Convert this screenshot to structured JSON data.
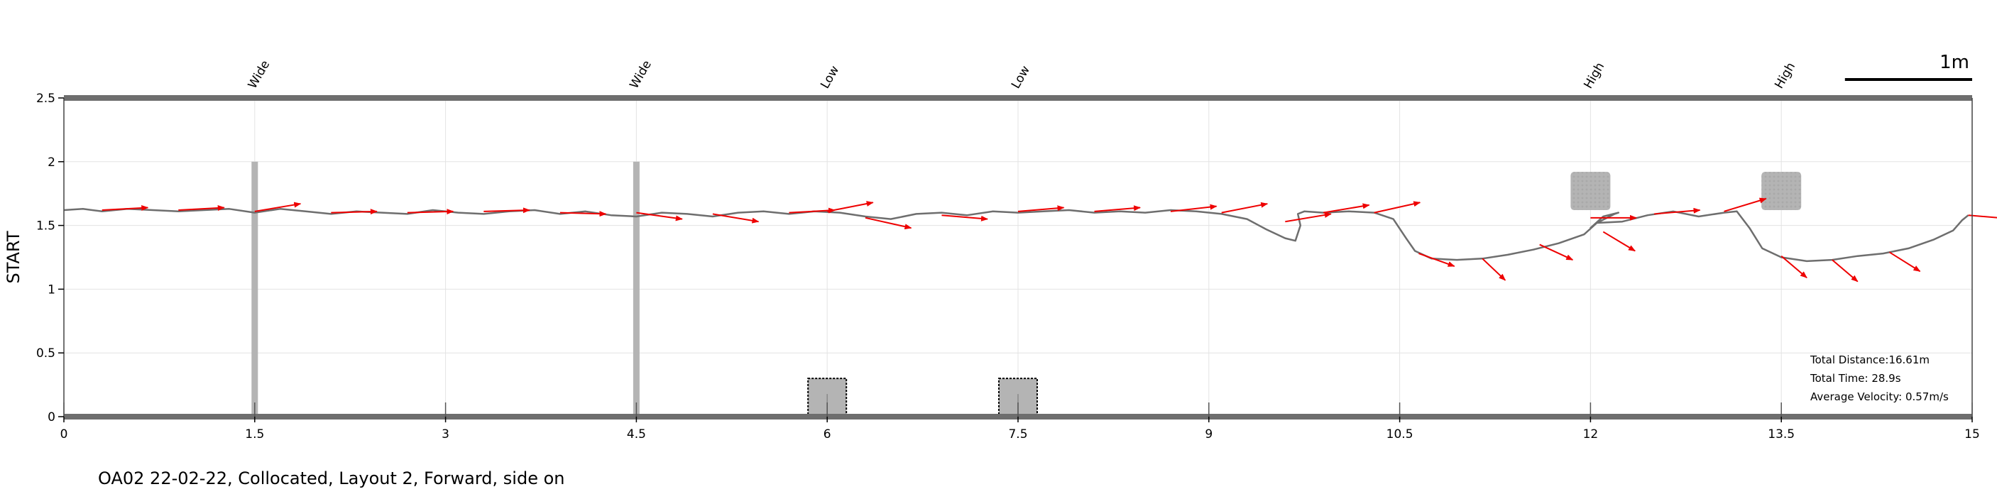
{
  "caption": "OA02 22-02-22, Collocated, Layout 2, Forward, side on",
  "chart_data": {
    "type": "line",
    "title": "",
    "xlabel": "",
    "ylabel": "START",
    "xlim": [
      0,
      15
    ],
    "ylim": [
      0,
      2.5
    ],
    "xticks": [
      0,
      1.5,
      3,
      4.5,
      6,
      7.5,
      9,
      10.5,
      12,
      13.5,
      15
    ],
    "xtick_labels": [
      "0",
      "1.5",
      "3",
      "4.5",
      "6",
      "7.5",
      "9",
      "10.5",
      "12",
      "13.5",
      "15"
    ],
    "yticks": [
      0,
      0.5,
      1,
      1.5,
      2,
      2.5
    ],
    "ytick_labels": [
      "0",
      "0.5",
      "1",
      "1.5",
      "2",
      "2.5"
    ],
    "grid": true,
    "colors": {
      "path": "#6e6e6e",
      "arrows": "#ee0000",
      "obstacle": "#b4b4b4",
      "border": "#6e6e6e"
    },
    "obstacles": [
      {
        "label": "Wide",
        "type": "wide",
        "x": 1.5,
        "y_range": [
          0,
          2.0
        ]
      },
      {
        "label": "Wide",
        "type": "wide",
        "x": 4.5,
        "y_range": [
          0,
          2.0
        ]
      },
      {
        "label": "Low",
        "type": "low",
        "x": 6.0,
        "y_range": [
          0,
          0.3
        ]
      },
      {
        "label": "Low",
        "type": "low",
        "x": 7.5,
        "y_range": [
          0,
          0.3
        ]
      },
      {
        "label": "High",
        "type": "high",
        "x": 12.0,
        "y_range": [
          1.62,
          1.92
        ]
      },
      {
        "label": "High",
        "type": "high",
        "x": 13.5,
        "y_range": [
          1.62,
          1.92
        ]
      }
    ],
    "series": [
      {
        "x": [
          0,
          0.15,
          0.3,
          0.5,
          0.7,
          0.9,
          1.1,
          1.3,
          1.5,
          1.7,
          1.9,
          2.1,
          2.3,
          2.5,
          2.7,
          2.9,
          3.1,
          3.3,
          3.5,
          3.7,
          3.9,
          4.1,
          4.3,
          4.5,
          4.7,
          4.9,
          5.1,
          5.3,
          5.5,
          5.7,
          5.9,
          6.1,
          6.3,
          6.5,
          6.7,
          6.9,
          7.1,
          7.3,
          7.5,
          7.7,
          7.9,
          8.1,
          8.3,
          8.5,
          8.7,
          8.9,
          9.1,
          9.3,
          9.45,
          9.6,
          9.68,
          9.72,
          9.7,
          9.75,
          9.9,
          10.1,
          10.3,
          10.45,
          10.55,
          10.62,
          10.75,
          10.95,
          11.15,
          11.35,
          11.55,
          11.75,
          11.95,
          12.05,
          12.15,
          12.19,
          12.22,
          12.1,
          12.0,
          12.05,
          12.25,
          12.45,
          12.65,
          12.85,
          13.05,
          13.15,
          13.25,
          13.35,
          13.5,
          13.7,
          13.9,
          14.1,
          14.3,
          14.5,
          14.7,
          14.85,
          14.92,
          14.97
        ],
        "y": [
          1.62,
          1.63,
          1.61,
          1.63,
          1.62,
          1.61,
          1.62,
          1.63,
          1.6,
          1.63,
          1.61,
          1.59,
          1.61,
          1.6,
          1.59,
          1.62,
          1.6,
          1.59,
          1.61,
          1.62,
          1.59,
          1.61,
          1.58,
          1.57,
          1.6,
          1.59,
          1.57,
          1.6,
          1.61,
          1.59,
          1.61,
          1.6,
          1.57,
          1.55,
          1.59,
          1.6,
          1.58,
          1.61,
          1.6,
          1.61,
          1.62,
          1.6,
          1.61,
          1.6,
          1.62,
          1.61,
          1.59,
          1.55,
          1.47,
          1.4,
          1.38,
          1.5,
          1.59,
          1.61,
          1.6,
          1.61,
          1.6,
          1.55,
          1.4,
          1.3,
          1.24,
          1.23,
          1.24,
          1.27,
          1.31,
          1.36,
          1.43,
          1.52,
          1.57,
          1.59,
          1.6,
          1.57,
          1.48,
          1.52,
          1.53,
          1.58,
          1.61,
          1.57,
          1.6,
          1.61,
          1.48,
          1.32,
          1.25,
          1.22,
          1.23,
          1.26,
          1.28,
          1.32,
          1.39,
          1.46,
          1.54,
          1.58
        ]
      }
    ],
    "arrows": [
      {
        "x": 0.3,
        "y": 1.62,
        "dx": 0.36,
        "dy": 0.02
      },
      {
        "x": 0.9,
        "y": 1.62,
        "dx": 0.36,
        "dy": 0.02
      },
      {
        "x": 1.5,
        "y": 1.61,
        "dx": 0.36,
        "dy": 0.06
      },
      {
        "x": 2.1,
        "y": 1.6,
        "dx": 0.36,
        "dy": 0.01
      },
      {
        "x": 2.7,
        "y": 1.6,
        "dx": 0.36,
        "dy": 0.01
      },
      {
        "x": 3.3,
        "y": 1.61,
        "dx": 0.36,
        "dy": 0.01
      },
      {
        "x": 3.9,
        "y": 1.6,
        "dx": 0.36,
        "dy": -0.01
      },
      {
        "x": 4.5,
        "y": 1.6,
        "dx": 0.36,
        "dy": -0.05
      },
      {
        "x": 5.1,
        "y": 1.59,
        "dx": 0.36,
        "dy": -0.06
      },
      {
        "x": 5.7,
        "y": 1.6,
        "dx": 0.36,
        "dy": 0.02
      },
      {
        "x": 6.0,
        "y": 1.61,
        "dx": 0.36,
        "dy": 0.07
      },
      {
        "x": 6.3,
        "y": 1.56,
        "dx": 0.36,
        "dy": -0.08
      },
      {
        "x": 6.9,
        "y": 1.58,
        "dx": 0.36,
        "dy": -0.03
      },
      {
        "x": 7.5,
        "y": 1.61,
        "dx": 0.36,
        "dy": 0.03
      },
      {
        "x": 8.1,
        "y": 1.61,
        "dx": 0.36,
        "dy": 0.03
      },
      {
        "x": 8.7,
        "y": 1.61,
        "dx": 0.36,
        "dy": 0.04
      },
      {
        "x": 9.1,
        "y": 1.6,
        "dx": 0.36,
        "dy": 0.07
      },
      {
        "x": 9.6,
        "y": 1.53,
        "dx": 0.36,
        "dy": 0.06
      },
      {
        "x": 9.9,
        "y": 1.6,
        "dx": 0.36,
        "dy": 0.06
      },
      {
        "x": 10.3,
        "y": 1.6,
        "dx": 0.36,
        "dy": 0.08
      },
      {
        "x": 10.65,
        "y": 1.28,
        "dx": 0.28,
        "dy": -0.1
      },
      {
        "x": 11.15,
        "y": 1.24,
        "dx": 0.18,
        "dy": -0.17
      },
      {
        "x": 11.6,
        "y": 1.35,
        "dx": 0.26,
        "dy": -0.12
      },
      {
        "x": 12.0,
        "y": 1.56,
        "dx": 0.36,
        "dy": 0.0
      },
      {
        "x": 12.1,
        "y": 1.45,
        "dx": 0.25,
        "dy": -0.15
      },
      {
        "x": 12.5,
        "y": 1.59,
        "dx": 0.36,
        "dy": 0.03
      },
      {
        "x": 13.05,
        "y": 1.61,
        "dx": 0.33,
        "dy": 0.1
      },
      {
        "x": 13.5,
        "y": 1.26,
        "dx": 0.2,
        "dy": -0.17
      },
      {
        "x": 13.9,
        "y": 1.23,
        "dx": 0.2,
        "dy": -0.17
      },
      {
        "x": 14.35,
        "y": 1.29,
        "dx": 0.24,
        "dy": -0.15
      },
      {
        "x": 14.97,
        "y": 1.58,
        "dx": 0.36,
        "dy": -0.03
      }
    ],
    "stats": [
      "Total Distance:16.61m",
      "Total Time: 28.9s",
      "Average Velocity: 0.57m/s"
    ],
    "scale_bar_label": "1m",
    "scale_bar_length": 1.0
  }
}
